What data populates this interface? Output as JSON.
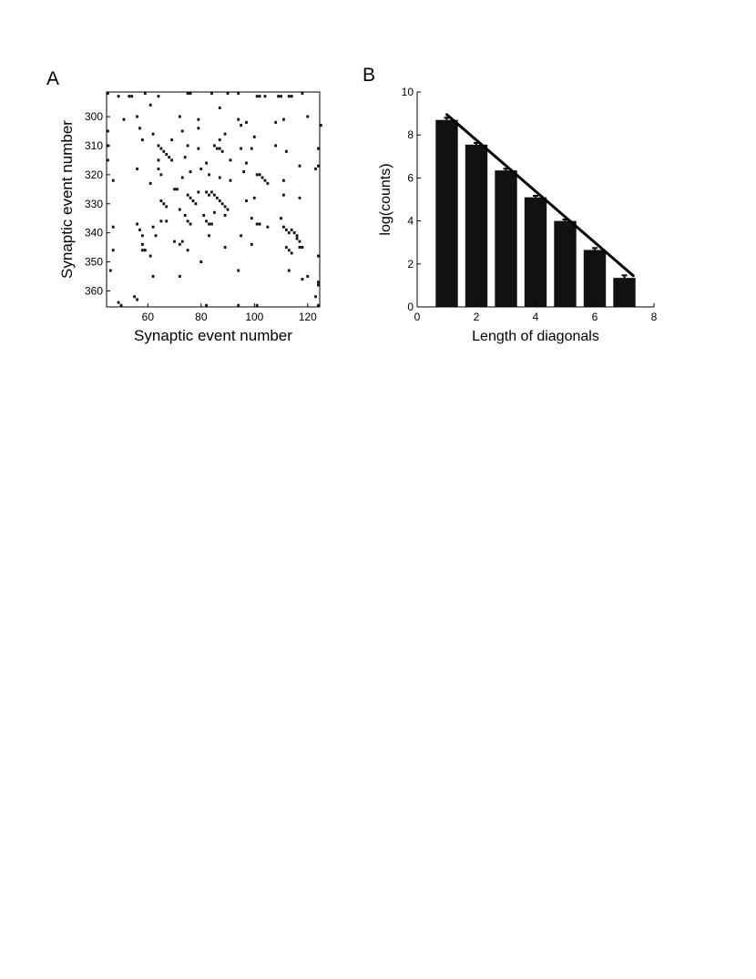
{
  "figure": {
    "panel_a_letter": "A",
    "panel_b_letter": "B"
  },
  "chart_data": [
    {
      "type": "scatter",
      "panel": "A",
      "xlabel": "Synaptic event number",
      "ylabel": "Synaptic event number",
      "xlim": [
        44.5,
        124.5
      ],
      "ylim": [
        291.5,
        365.5
      ],
      "y_inverted": true,
      "xticks": [
        60,
        80,
        100,
        120
      ],
      "yticks": [
        300,
        310,
        320,
        330,
        340,
        350,
        360
      ],
      "marker_color": "#111111",
      "points": [
        [
          45,
          292
        ],
        [
          49,
          293
        ],
        [
          53,
          293
        ],
        [
          54,
          293
        ],
        [
          59,
          292
        ],
        [
          75,
          292
        ],
        [
          76,
          292
        ],
        [
          84,
          292
        ],
        [
          90,
          292
        ],
        [
          94,
          292
        ],
        [
          101,
          293
        ],
        [
          102,
          293
        ],
        [
          104,
          293
        ],
        [
          109,
          293
        ],
        [
          110,
          293
        ],
        [
          113,
          293
        ],
        [
          114,
          293
        ],
        [
          118,
          292
        ],
        [
          64,
          293
        ],
        [
          61,
          296
        ],
        [
          51,
          301
        ],
        [
          56,
          300
        ],
        [
          72,
          300
        ],
        [
          79,
          301
        ],
        [
          87,
          297
        ],
        [
          94,
          301
        ],
        [
          95,
          303
        ],
        [
          97,
          302
        ],
        [
          108,
          302
        ],
        [
          111,
          301
        ],
        [
          120,
          300
        ],
        [
          125,
          303
        ],
        [
          45,
          305
        ],
        [
          57,
          304
        ],
        [
          73,
          305
        ],
        [
          79,
          304
        ],
        [
          62,
          306
        ],
        [
          58,
          308
        ],
        [
          69,
          308
        ],
        [
          87,
          308
        ],
        [
          89,
          306
        ],
        [
          100,
          307
        ],
        [
          45,
          310
        ],
        [
          64,
          310
        ],
        [
          65,
          311
        ],
        [
          66,
          312
        ],
        [
          67,
          313
        ],
        [
          68,
          314
        ],
        [
          69,
          315
        ],
        [
          75,
          310
        ],
        [
          79,
          311
        ],
        [
          82,
          316
        ],
        [
          85,
          310
        ],
        [
          86,
          311
        ],
        [
          87,
          311
        ],
        [
          88,
          312
        ],
        [
          95,
          311
        ],
        [
          99,
          311
        ],
        [
          108,
          310
        ],
        [
          112,
          312
        ],
        [
          124,
          311
        ],
        [
          45,
          315
        ],
        [
          64,
          315
        ],
        [
          74,
          314
        ],
        [
          91,
          315
        ],
        [
          97,
          316
        ],
        [
          117,
          317
        ],
        [
          124,
          317
        ],
        [
          47,
          322
        ],
        [
          56,
          318
        ],
        [
          64,
          318
        ],
        [
          65,
          320
        ],
        [
          73,
          321
        ],
        [
          76,
          319
        ],
        [
          80,
          318
        ],
        [
          83,
          320
        ],
        [
          87,
          321
        ],
        [
          91,
          322
        ],
        [
          96,
          319
        ],
        [
          101,
          320
        ],
        [
          102,
          320
        ],
        [
          103,
          321
        ],
        [
          104,
          322
        ],
        [
          105,
          323
        ],
        [
          111,
          322
        ],
        [
          123,
          318
        ],
        [
          61,
          323
        ],
        [
          70,
          325
        ],
        [
          71,
          325
        ],
        [
          79,
          326
        ],
        [
          65,
          329
        ],
        [
          66,
          330
        ],
        [
          67,
          331
        ],
        [
          75,
          327
        ],
        [
          76,
          328
        ],
        [
          77,
          329
        ],
        [
          78,
          330
        ],
        [
          82,
          326
        ],
        [
          83,
          327
        ],
        [
          84,
          326
        ],
        [
          85,
          327
        ],
        [
          86,
          328
        ],
        [
          87,
          329
        ],
        [
          88,
          330
        ],
        [
          89,
          331
        ],
        [
          90,
          332
        ],
        [
          97,
          329
        ],
        [
          100,
          328
        ],
        [
          111,
          327
        ],
        [
          117,
          328
        ],
        [
          56,
          337
        ],
        [
          57,
          339
        ],
        [
          58,
          341
        ],
        [
          65,
          336
        ],
        [
          67,
          336
        ],
        [
          72,
          332
        ],
        [
          74,
          334
        ],
        [
          75,
          336
        ],
        [
          76,
          337
        ],
        [
          81,
          334
        ],
        [
          82,
          336
        ],
        [
          83,
          337
        ],
        [
          84,
          337
        ],
        [
          85,
          333
        ],
        [
          89,
          334
        ],
        [
          99,
          335
        ],
        [
          101,
          337
        ],
        [
          102,
          337
        ],
        [
          105,
          338
        ],
        [
          110,
          335
        ],
        [
          111,
          338
        ],
        [
          112,
          339
        ],
        [
          113,
          340
        ],
        [
          114,
          339
        ],
        [
          115,
          340
        ],
        [
          116,
          341
        ],
        [
          116,
          342
        ],
        [
          117,
          343
        ],
        [
          47,
          338
        ],
        [
          58,
          344
        ],
        [
          58,
          346
        ],
        [
          59,
          346
        ],
        [
          62,
          338
        ],
        [
          63,
          341
        ],
        [
          70,
          343
        ],
        [
          72,
          344
        ],
        [
          73,
          343
        ],
        [
          75,
          346
        ],
        [
          83,
          341
        ],
        [
          89,
          345
        ],
        [
          95,
          341
        ],
        [
          99,
          344
        ],
        [
          112,
          345
        ],
        [
          113,
          346
        ],
        [
          114,
          347
        ],
        [
          117,
          345
        ],
        [
          118,
          345
        ],
        [
          124,
          348
        ],
        [
          47,
          346
        ],
        [
          61,
          348
        ],
        [
          46,
          353
        ],
        [
          62,
          355
        ],
        [
          72,
          355
        ],
        [
          80,
          350
        ],
        [
          94,
          353
        ],
        [
          113,
          353
        ],
        [
          118,
          356
        ],
        [
          120,
          355
        ],
        [
          124,
          357
        ],
        [
          124,
          358
        ],
        [
          123,
          362
        ],
        [
          55,
          362
        ],
        [
          56,
          363
        ],
        [
          49,
          364
        ],
        [
          50,
          365
        ],
        [
          82,
          365
        ],
        [
          101,
          365
        ],
        [
          94,
          365
        ],
        [
          124,
          365
        ]
      ]
    },
    {
      "type": "bar",
      "panel": "B",
      "xlabel": "Length of diagonals",
      "ylabel": "log(counts)",
      "xlim": [
        0,
        8
      ],
      "ylim": [
        0,
        10
      ],
      "xticks": [
        0,
        2,
        4,
        6,
        8
      ],
      "yticks": [
        0,
        2,
        4,
        6,
        8,
        10
      ],
      "categories": [
        1,
        2,
        3,
        4,
        5,
        6,
        7
      ],
      "values": [
        8.7,
        7.55,
        6.35,
        5.1,
        4.0,
        2.65,
        1.35
      ],
      "error": [
        0.1,
        0.08,
        0.08,
        0.07,
        0.07,
        0.09,
        0.12
      ],
      "bar_width": 0.75,
      "bar_color": "#111111",
      "fit_line": {
        "x": [
          1,
          7.3
        ],
        "y": [
          8.95,
          1.45
        ]
      }
    }
  ]
}
